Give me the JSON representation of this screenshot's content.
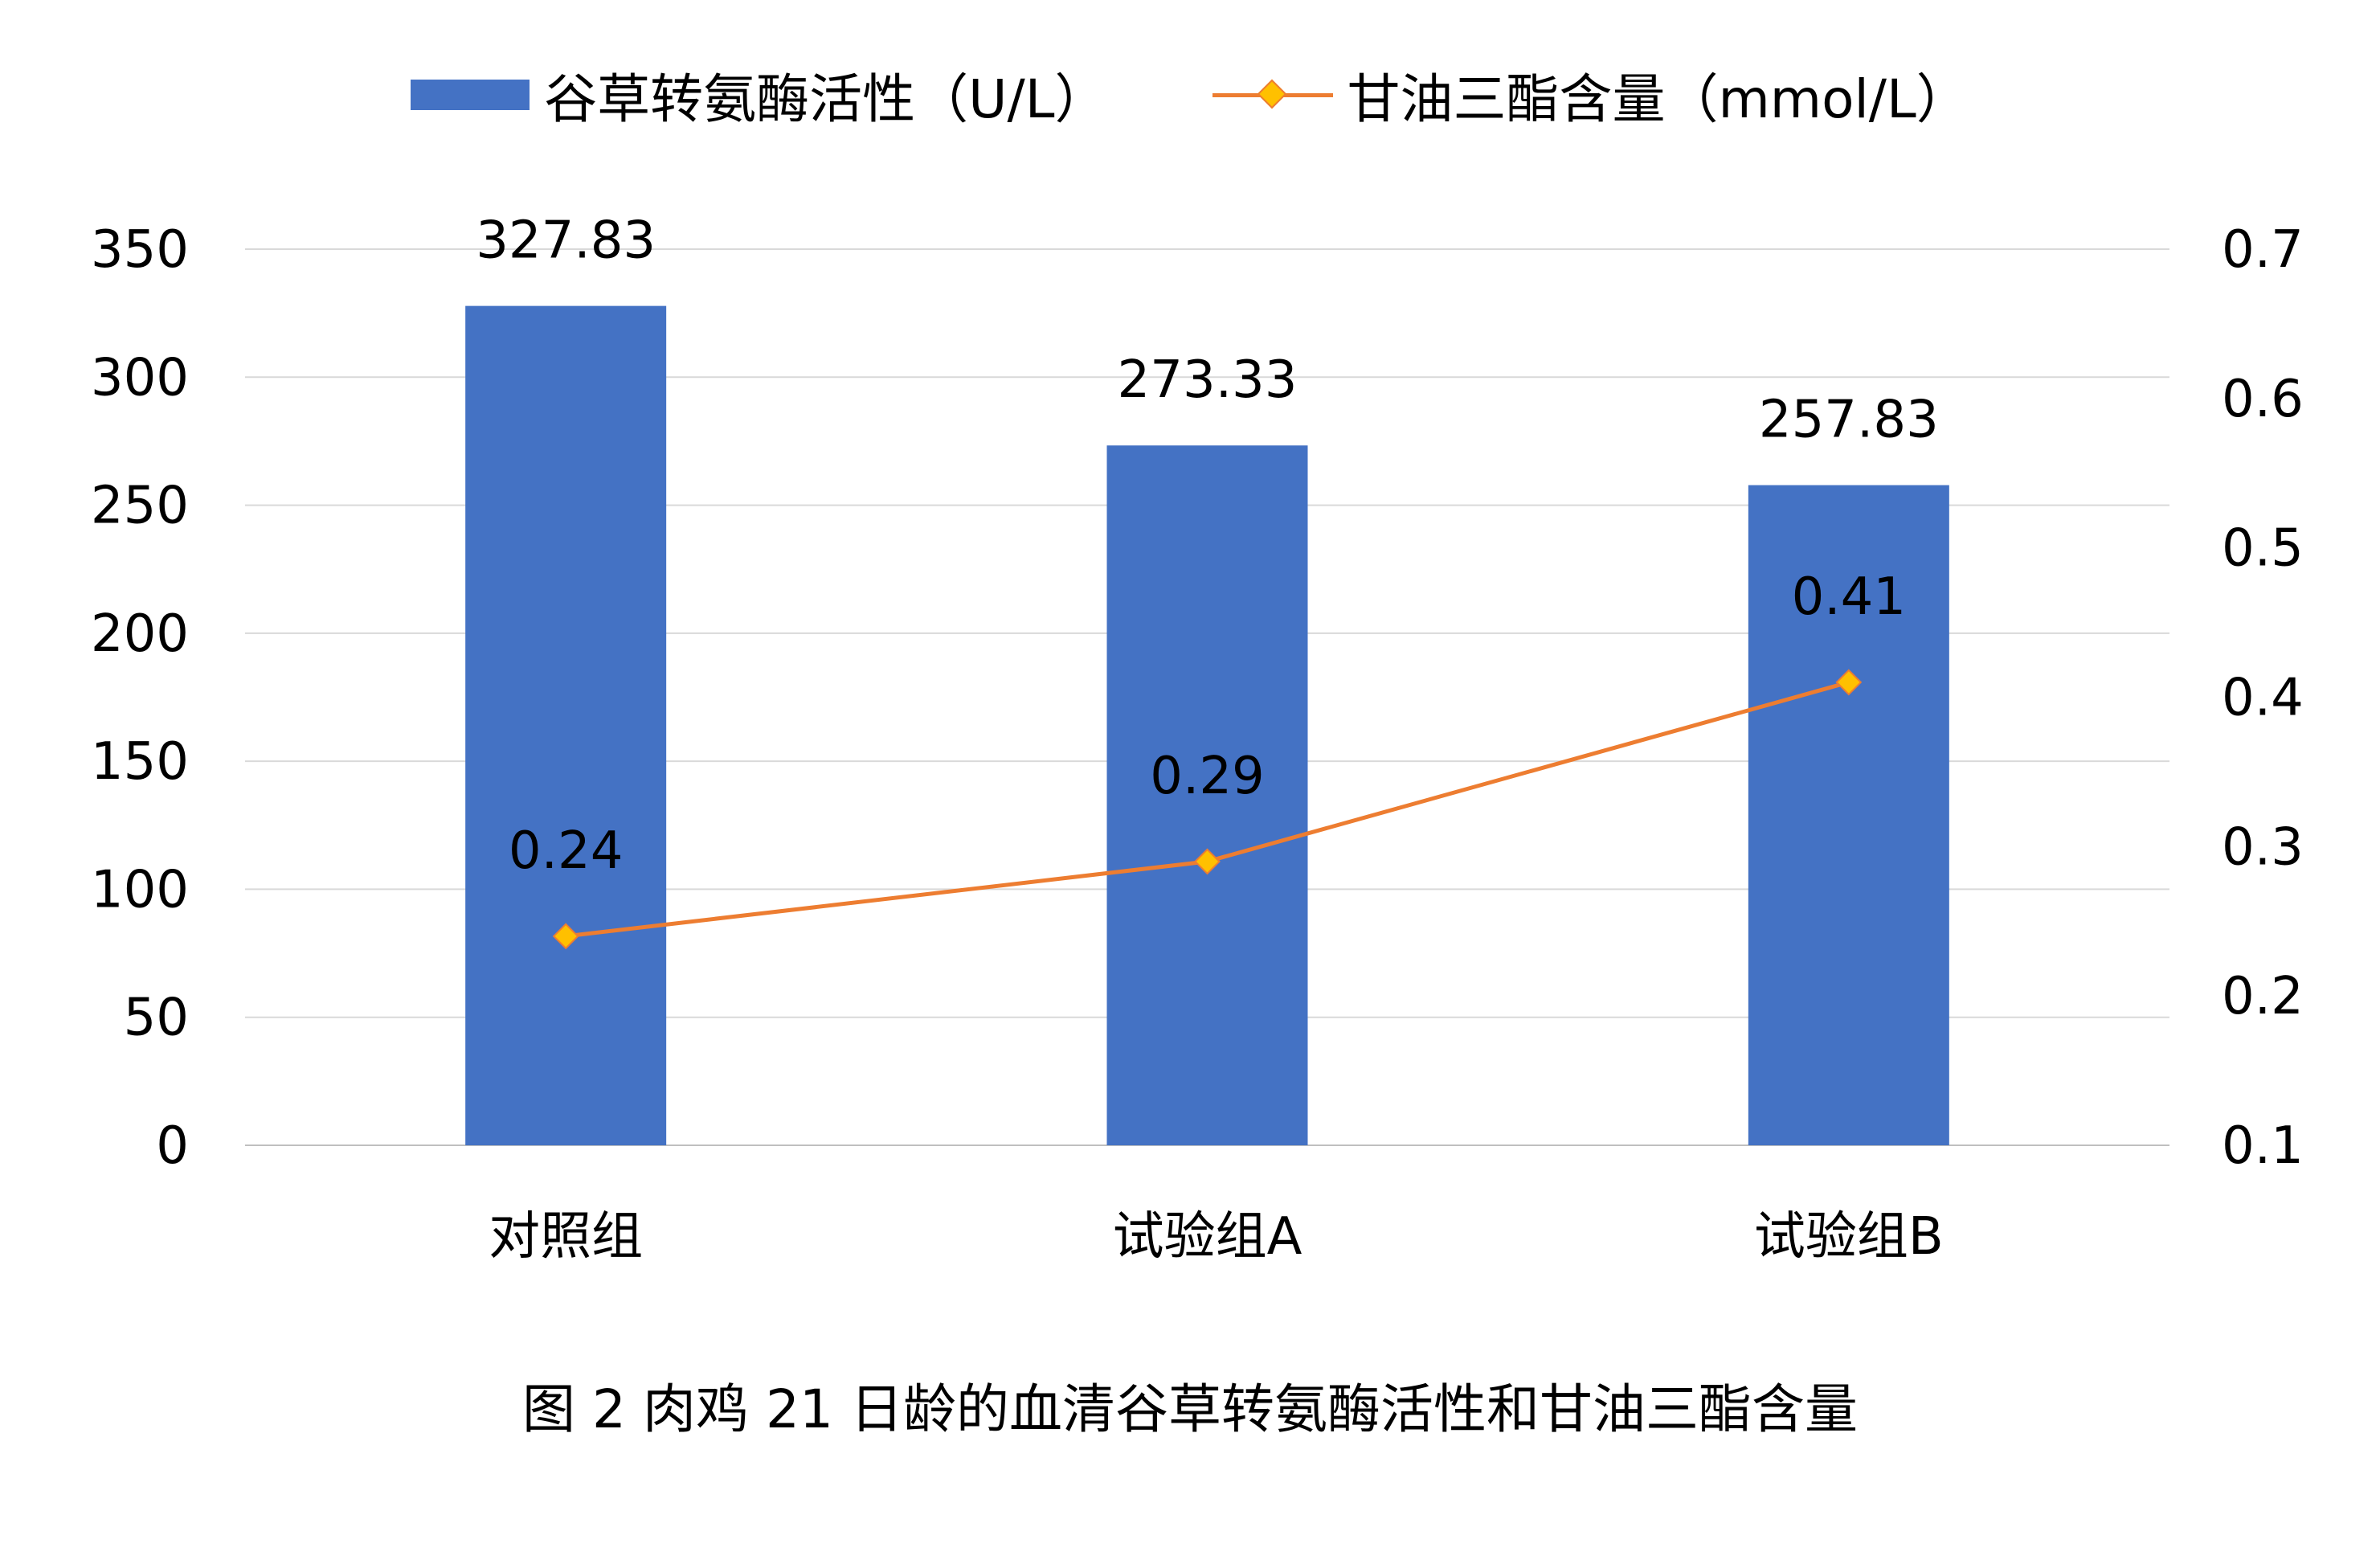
{
  "chart_data": {
    "type": "bar",
    "categories": [
      "对照组",
      "试验组A",
      "试验组B"
    ],
    "series": [
      {
        "name": "谷草转氨酶活性（U/L）",
        "type": "bar",
        "axis": "left",
        "color": "#4472C4",
        "values": [
          327.83,
          273.33,
          257.83
        ],
        "labels": [
          "327.83",
          "273.33",
          "257.83"
        ]
      },
      {
        "name": "甘油三酯含量（mmol/L）",
        "type": "line",
        "axis": "right",
        "color": "#ED7D31",
        "marker": "diamond",
        "marker_color": "#FFC000",
        "values": [
          0.24,
          0.29,
          0.41
        ],
        "labels": [
          "0.24",
          "0.29",
          "0.41"
        ]
      }
    ],
    "y_left": {
      "min": 0,
      "max": 350,
      "ticks": [
        "0",
        "50",
        "100",
        "150",
        "200",
        "250",
        "300",
        "350"
      ]
    },
    "y_right": {
      "min": 0.1,
      "max": 0.7,
      "ticks": [
        "0.1",
        "0.2",
        "0.3",
        "0.4",
        "0.5",
        "0.6",
        "0.7"
      ]
    },
    "grid": true,
    "legend_position": "top"
  },
  "caption": "图 2  肉鸡 21 日龄的血清谷草转氨酶活性和甘油三酯含量"
}
